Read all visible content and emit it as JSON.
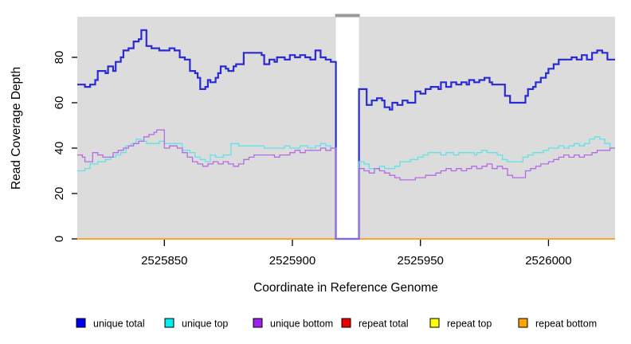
{
  "figure": {
    "ylabel": "Read Coverage Depth",
    "xlabel": "Coordinate in Reference Genome"
  },
  "chart_data": {
    "type": "line",
    "subtype": "step-coverage-plot",
    "title": "",
    "xlabel": "Coordinate in Reference Genome",
    "ylabel": "Read Coverage Depth",
    "xlim": [
      2525816,
      2526026
    ],
    "ylim": [
      0,
      98
    ],
    "x_ticks": [
      2525850,
      2525900,
      2525950,
      2526000
    ],
    "x_tick_labels": [
      "2525850",
      "2525900",
      "2525950",
      "2526000"
    ],
    "y_ticks": [
      0,
      20,
      40,
      60,
      80
    ],
    "y_tick_labels": [
      "0",
      "20",
      "40",
      "60",
      "80"
    ],
    "grid": false,
    "plot_bg": "#dcdcdc",
    "gap": {
      "start": 2525917,
      "end": 2525926,
      "fill": "#ffffff",
      "cap_color": "#999999"
    },
    "legend_position": "bottom",
    "series": [
      {
        "name": "repeat total",
        "color": "#ee0000",
        "width": 1.6,
        "points": [
          [
            2525816,
            0
          ],
          [
            2526026,
            0
          ]
        ]
      },
      {
        "name": "repeat top",
        "color": "#ffff00",
        "width": 1.6,
        "points": [
          [
            2525816,
            0
          ],
          [
            2526026,
            0
          ]
        ]
      },
      {
        "name": "repeat bottom",
        "color": "#ffa030",
        "width": 1.7,
        "points": [
          [
            2525816,
            0
          ],
          [
            2526026,
            0
          ]
        ]
      },
      {
        "name": "unique total",
        "color": "#2a2ad4",
        "width": 2.2,
        "points": [
          [
            2525816,
            68
          ],
          [
            2525819,
            67
          ],
          [
            2525821,
            68
          ],
          [
            2525823,
            70
          ],
          [
            2525824,
            74
          ],
          [
            2525827,
            73
          ],
          [
            2525828,
            76
          ],
          [
            2525830,
            74
          ],
          [
            2525831,
            78
          ],
          [
            2525833,
            80
          ],
          [
            2525834,
            83
          ],
          [
            2525836,
            84
          ],
          [
            2525838,
            87
          ],
          [
            2525840,
            88
          ],
          [
            2525841,
            92
          ],
          [
            2525843,
            85
          ],
          [
            2525845,
            84
          ],
          [
            2525848,
            83
          ],
          [
            2525852,
            84
          ],
          [
            2525854,
            83
          ],
          [
            2525856,
            80
          ],
          [
            2525858,
            79
          ],
          [
            2525860,
            74
          ],
          [
            2525862,
            73
          ],
          [
            2525863,
            71
          ],
          [
            2525864,
            66
          ],
          [
            2525866,
            67
          ],
          [
            2525867,
            70
          ],
          [
            2525868,
            69
          ],
          [
            2525870,
            71
          ],
          [
            2525871,
            73
          ],
          [
            2525872,
            76
          ],
          [
            2525874,
            75
          ],
          [
            2525875,
            74
          ],
          [
            2525877,
            76
          ],
          [
            2525878,
            77
          ],
          [
            2525881,
            82
          ],
          [
            2525888,
            81
          ],
          [
            2525889,
            77
          ],
          [
            2525891,
            79
          ],
          [
            2525893,
            78
          ],
          [
            2525894,
            80
          ],
          [
            2525897,
            79
          ],
          [
            2525899,
            81
          ],
          [
            2525901,
            80
          ],
          [
            2525903,
            81
          ],
          [
            2525905,
            80
          ],
          [
            2525907,
            79
          ],
          [
            2525909,
            83
          ],
          [
            2525911,
            80
          ],
          [
            2525913,
            79
          ],
          [
            2525915,
            78
          ],
          [
            2525917,
            0
          ],
          [
            2525926,
            66
          ],
          [
            2525929,
            59
          ],
          [
            2525931,
            61
          ],
          [
            2525933,
            62
          ],
          [
            2525935,
            61
          ],
          [
            2525936,
            58
          ],
          [
            2525938,
            57
          ],
          [
            2525939,
            60
          ],
          [
            2525941,
            59
          ],
          [
            2525943,
            61
          ],
          [
            2525945,
            60
          ],
          [
            2525948,
            65
          ],
          [
            2525950,
            64
          ],
          [
            2525952,
            66
          ],
          [
            2525954,
            67
          ],
          [
            2525957,
            66
          ],
          [
            2525958,
            69
          ],
          [
            2525960,
            67
          ],
          [
            2525962,
            69
          ],
          [
            2525964,
            68
          ],
          [
            2525966,
            69
          ],
          [
            2525968,
            68
          ],
          [
            2525969,
            70
          ],
          [
            2525971,
            69
          ],
          [
            2525973,
            70
          ],
          [
            2525975,
            71
          ],
          [
            2525977,
            69
          ],
          [
            2525978,
            68
          ],
          [
            2525983,
            63
          ],
          [
            2525985,
            60
          ],
          [
            2525989,
            60
          ],
          [
            2525991,
            63
          ],
          [
            2525992,
            66
          ],
          [
            2525994,
            67
          ],
          [
            2525995,
            69
          ],
          [
            2525997,
            71
          ],
          [
            2525999,
            73
          ],
          [
            2526000,
            75
          ],
          [
            2526002,
            77
          ],
          [
            2526004,
            79
          ],
          [
            2526008,
            79
          ],
          [
            2526009,
            80
          ],
          [
            2526011,
            79
          ],
          [
            2526013,
            81
          ],
          [
            2526015,
            79
          ],
          [
            2526017,
            82
          ],
          [
            2526019,
            83
          ],
          [
            2526021,
            82
          ],
          [
            2526023,
            79
          ],
          [
            2526026,
            79
          ]
        ]
      },
      {
        "name": "unique top",
        "color": "#5fe3e8",
        "width": 1.3,
        "points": [
          [
            2525816,
            30
          ],
          [
            2525819,
            31
          ],
          [
            2525821,
            33
          ],
          [
            2525824,
            34
          ],
          [
            2525827,
            35
          ],
          [
            2525829,
            36
          ],
          [
            2525831,
            37
          ],
          [
            2525833,
            38
          ],
          [
            2525835,
            41
          ],
          [
            2525837,
            42
          ],
          [
            2525839,
            44
          ],
          [
            2525841,
            43
          ],
          [
            2525843,
            42
          ],
          [
            2525848,
            43
          ],
          [
            2525850,
            42
          ],
          [
            2525857,
            39
          ],
          [
            2525860,
            38
          ],
          [
            2525862,
            36
          ],
          [
            2525864,
            35
          ],
          [
            2525866,
            34
          ],
          [
            2525868,
            37
          ],
          [
            2525870,
            36
          ],
          [
            2525873,
            37
          ],
          [
            2525876,
            42
          ],
          [
            2525879,
            41
          ],
          [
            2525889,
            40
          ],
          [
            2525897,
            41
          ],
          [
            2525899,
            40
          ],
          [
            2525903,
            41
          ],
          [
            2525906,
            40
          ],
          [
            2525909,
            41
          ],
          [
            2525911,
            42
          ],
          [
            2525913,
            41
          ],
          [
            2525915,
            40
          ],
          [
            2525917,
            0
          ],
          [
            2525926,
            34
          ],
          [
            2525928,
            33
          ],
          [
            2525930,
            31
          ],
          [
            2525934,
            32
          ],
          [
            2525936,
            31
          ],
          [
            2525940,
            32
          ],
          [
            2525942,
            34
          ],
          [
            2525946,
            35
          ],
          [
            2525949,
            36
          ],
          [
            2525951,
            37
          ],
          [
            2525953,
            38
          ],
          [
            2525958,
            37
          ],
          [
            2525960,
            38
          ],
          [
            2525963,
            37
          ],
          [
            2525965,
            38
          ],
          [
            2525971,
            37
          ],
          [
            2525972,
            38
          ],
          [
            2525974,
            39
          ],
          [
            2525976,
            38
          ],
          [
            2525980,
            37
          ],
          [
            2525982,
            35
          ],
          [
            2525984,
            34
          ],
          [
            2525988,
            34
          ],
          [
            2525990,
            36
          ],
          [
            2525992,
            37
          ],
          [
            2525994,
            38
          ],
          [
            2525998,
            39
          ],
          [
            2526000,
            40
          ],
          [
            2526004,
            41
          ],
          [
            2526006,
            40
          ],
          [
            2526008,
            41
          ],
          [
            2526010,
            42
          ],
          [
            2526012,
            41
          ],
          [
            2526014,
            42
          ],
          [
            2526016,
            44
          ],
          [
            2526018,
            45
          ],
          [
            2526020,
            44
          ],
          [
            2526022,
            42
          ],
          [
            2526024,
            40
          ],
          [
            2526026,
            40
          ]
        ]
      },
      {
        "name": "unique bottom",
        "color": "#b36be3",
        "width": 1.3,
        "points": [
          [
            2525816,
            37
          ],
          [
            2525818,
            36
          ],
          [
            2525819,
            34
          ],
          [
            2525822,
            38
          ],
          [
            2525824,
            37
          ],
          [
            2525826,
            36
          ],
          [
            2525830,
            38
          ],
          [
            2525832,
            39
          ],
          [
            2525834,
            40
          ],
          [
            2525836,
            41
          ],
          [
            2525838,
            42
          ],
          [
            2525840,
            43
          ],
          [
            2525842,
            45
          ],
          [
            2525844,
            46
          ],
          [
            2525846,
            47
          ],
          [
            2525847,
            48
          ],
          [
            2525850,
            40
          ],
          [
            2525852,
            41
          ],
          [
            2525855,
            40
          ],
          [
            2525857,
            38
          ],
          [
            2525859,
            36
          ],
          [
            2525861,
            34
          ],
          [
            2525863,
            33
          ],
          [
            2525865,
            32
          ],
          [
            2525867,
            33
          ],
          [
            2525869,
            34
          ],
          [
            2525871,
            33
          ],
          [
            2525873,
            34
          ],
          [
            2525875,
            33
          ],
          [
            2525877,
            32
          ],
          [
            2525879,
            33
          ],
          [
            2525881,
            35
          ],
          [
            2525883,
            36
          ],
          [
            2525885,
            37
          ],
          [
            2525891,
            37
          ],
          [
            2525893,
            36
          ],
          [
            2525895,
            37
          ],
          [
            2525899,
            38
          ],
          [
            2525901,
            39
          ],
          [
            2525903,
            38
          ],
          [
            2525905,
            39
          ],
          [
            2525909,
            39
          ],
          [
            2525911,
            40
          ],
          [
            2525913,
            39
          ],
          [
            2525915,
            40
          ],
          [
            2525917,
            0
          ],
          [
            2525926,
            31
          ],
          [
            2525928,
            30
          ],
          [
            2525930,
            29
          ],
          [
            2525932,
            31
          ],
          [
            2525934,
            30
          ],
          [
            2525936,
            29
          ],
          [
            2525938,
            28
          ],
          [
            2525940,
            27
          ],
          [
            2525942,
            26
          ],
          [
            2525946,
            26
          ],
          [
            2525948,
            27
          ],
          [
            2525952,
            28
          ],
          [
            2525956,
            29
          ],
          [
            2525958,
            30
          ],
          [
            2525960,
            31
          ],
          [
            2525962,
            30
          ],
          [
            2525964,
            31
          ],
          [
            2525966,
            30
          ],
          [
            2525968,
            31
          ],
          [
            2525970,
            32
          ],
          [
            2525972,
            31
          ],
          [
            2525974,
            32
          ],
          [
            2525976,
            33
          ],
          [
            2525978,
            31
          ],
          [
            2525980,
            32
          ],
          [
            2525982,
            31
          ],
          [
            2525984,
            28
          ],
          [
            2525986,
            27
          ],
          [
            2525989,
            27
          ],
          [
            2525991,
            30
          ],
          [
            2525993,
            31
          ],
          [
            2525995,
            32
          ],
          [
            2525997,
            33
          ],
          [
            2526000,
            34
          ],
          [
            2526002,
            35
          ],
          [
            2526004,
            36
          ],
          [
            2526006,
            37
          ],
          [
            2526008,
            36
          ],
          [
            2526010,
            37
          ],
          [
            2526012,
            36
          ],
          [
            2526014,
            37
          ],
          [
            2526017,
            38
          ],
          [
            2526019,
            39
          ],
          [
            2526022,
            39
          ],
          [
            2526024,
            40
          ],
          [
            2526026,
            40
          ]
        ]
      }
    ]
  },
  "legend": {
    "items": [
      {
        "label": "unique total",
        "color": "#0000ee"
      },
      {
        "label": "unique top",
        "color": "#00eeee"
      },
      {
        "label": "unique bottom",
        "color": "#a020f0"
      },
      {
        "label": "repeat total",
        "color": "#ee0000"
      },
      {
        "label": "repeat top",
        "color": "#ffff00"
      },
      {
        "label": "repeat bottom",
        "color": "#ffa500"
      }
    ]
  }
}
